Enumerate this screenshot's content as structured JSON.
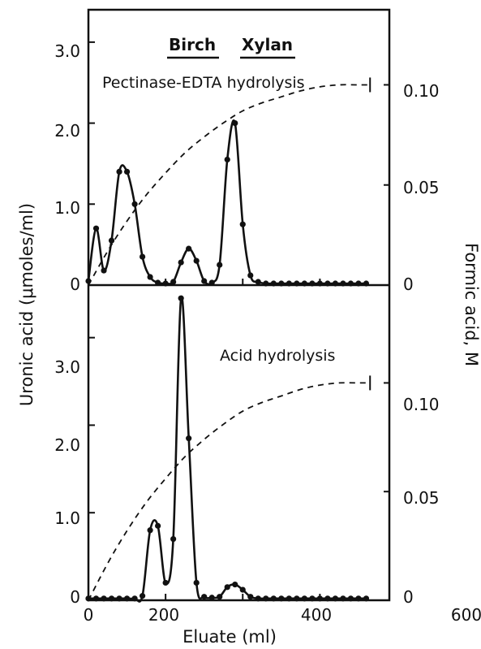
{
  "figure": {
    "heading_words": [
      "Birch",
      "Xylan"
    ],
    "xlabel": "Eluate (ml)",
    "ylabel_left": "Uronic acid (μmoles/ml)",
    "ylabel_right": "Formic acid, M",
    "x_ticks": [
      "0",
      "200",
      "400",
      "600"
    ]
  },
  "chart_data": [
    {
      "type": "line",
      "title": "Pectinase-EDTA hydrolysis",
      "xlim": [
        0,
        780
      ],
      "ylim_left": [
        0,
        3.4
      ],
      "ylim_right": [
        0,
        0.1375
      ],
      "y_ticks_left": [
        "0",
        "1.0",
        "2.0",
        "3.0"
      ],
      "y_ticks_right": [
        "0",
        "0.05",
        "0.10"
      ],
      "grid": false,
      "series": [
        {
          "axis": "left",
          "style": "solid-with-markers",
          "x": [
            0,
            20,
            40,
            60,
            80,
            100,
            120,
            140,
            160,
            180,
            200,
            220,
            240,
            260,
            280,
            300,
            320,
            340,
            360,
            380,
            400,
            420,
            440,
            460,
            480,
            500,
            520,
            540,
            560,
            580,
            600,
            620,
            640,
            660,
            680,
            700,
            720
          ],
          "y": [
            0.05,
            0.7,
            0.18,
            0.55,
            1.4,
            1.4,
            1.0,
            0.35,
            0.1,
            0.03,
            0.02,
            0.04,
            0.28,
            0.45,
            0.3,
            0.05,
            0.03,
            0.25,
            1.55,
            2.0,
            0.75,
            0.12,
            0.04,
            0.02,
            0.02,
            0.02,
            0.02,
            0.02,
            0.02,
            0.02,
            0.02,
            0.02,
            0.02,
            0.02,
            0.02,
            0.02,
            0.02
          ]
        },
        {
          "axis": "right",
          "style": "dashed",
          "x": [
            0,
            50,
            100,
            150,
            200,
            250,
            300,
            350,
            400,
            450,
            500,
            550,
            600,
            650,
            700,
            730
          ],
          "y": [
            0,
            0.017,
            0.032,
            0.045,
            0.056,
            0.066,
            0.074,
            0.081,
            0.087,
            0.091,
            0.094,
            0.097,
            0.099,
            0.1,
            0.1,
            0.1
          ]
        }
      ]
    },
    {
      "type": "line",
      "title": "Acid hydrolysis",
      "xlim": [
        0,
        780
      ],
      "ylim_left": [
        0,
        3.6
      ],
      "ylim_right": [
        0,
        0.145
      ],
      "y_ticks_left": [
        "0",
        "1.0",
        "2.0",
        "3.0"
      ],
      "y_ticks_right": [
        "0",
        "0.05",
        "0.10"
      ],
      "grid": false,
      "series": [
        {
          "axis": "left",
          "style": "solid-with-markers",
          "x": [
            0,
            20,
            40,
            60,
            80,
            100,
            120,
            140,
            160,
            180,
            200,
            220,
            240,
            260,
            280,
            300,
            320,
            340,
            360,
            380,
            400,
            420,
            440,
            460,
            480,
            500,
            520,
            540,
            560,
            580,
            600,
            620,
            640,
            660,
            680,
            700,
            720
          ],
          "y": [
            0.02,
            0.02,
            0.02,
            0.02,
            0.02,
            0.02,
            0.02,
            0.05,
            0.8,
            0.85,
            0.2,
            0.7,
            3.45,
            1.85,
            0.2,
            0.04,
            0.03,
            0.04,
            0.15,
            0.18,
            0.12,
            0.04,
            0.02,
            0.02,
            0.02,
            0.02,
            0.02,
            0.02,
            0.02,
            0.02,
            0.02,
            0.02,
            0.02,
            0.02,
            0.02,
            0.02,
            0.02
          ]
        },
        {
          "axis": "right",
          "style": "dashed",
          "x": [
            0,
            50,
            100,
            150,
            200,
            250,
            300,
            350,
            400,
            450,
            500,
            550,
            600,
            650,
            700,
            730
          ],
          "y": [
            0,
            0.017,
            0.032,
            0.045,
            0.056,
            0.066,
            0.074,
            0.081,
            0.087,
            0.091,
            0.094,
            0.097,
            0.099,
            0.1,
            0.1,
            0.1
          ]
        }
      ]
    }
  ]
}
